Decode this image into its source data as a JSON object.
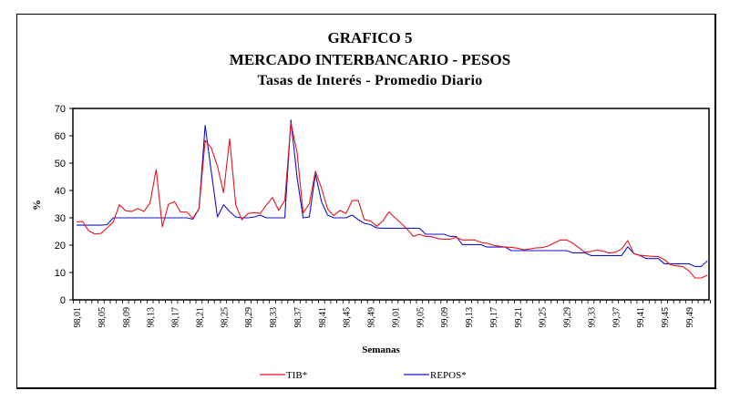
{
  "chart_data": {
    "type": "line",
    "title": "GRAFICO 5",
    "subtitle": "MERCADO INTERBANCARIO - PESOS",
    "subtitle2": "Tasas de Interés - Promedio Diario",
    "xlabel": "Semanas",
    "ylabel": "%",
    "ylim": [
      0,
      70
    ],
    "y_ticks": [
      0,
      10,
      20,
      30,
      40,
      50,
      60,
      70
    ],
    "x_tick_labels": [
      "98,01",
      "98,05",
      "98,09",
      "98,13",
      "98,17",
      "98,21",
      "98,25",
      "98,29",
      "98,33",
      "98,37",
      "98,41",
      "98,45",
      "98,49",
      "99,01",
      "99,05",
      "99,09",
      "99,13",
      "99,17",
      "99,21",
      "99,25",
      "99,29",
      "99,33",
      "99,37",
      "99,41",
      "99,45",
      "99,49"
    ],
    "grid": false,
    "legend_position": "bottom",
    "series": [
      {
        "name": "TIB*",
        "color": "#e8141e",
        "values": [
          28.5,
          28.7,
          25.2,
          24.1,
          24.3,
          26.3,
          28.5,
          34.8,
          32.6,
          32.3,
          33.4,
          32.3,
          35.4,
          47.7,
          26.7,
          34.9,
          35.9,
          32.1,
          32.1,
          29.8,
          33.4,
          58.3,
          55.6,
          48.9,
          39.2,
          58.9,
          34.7,
          29.3,
          31.6,
          31.9,
          31.6,
          34.7,
          37.4,
          32.7,
          36.3,
          64.7,
          54.1,
          31.8,
          35.1,
          47.1,
          40.8,
          33.2,
          30.8,
          32.7,
          31.6,
          36.3,
          36.3,
          29.3,
          28.9,
          26.9,
          28.8,
          32.2,
          30,
          28,
          25.8,
          23.2,
          24,
          23.2,
          23.1,
          22.4,
          22.2,
          22.2,
          22.8,
          21.9,
          21.9,
          21.9,
          21,
          20.7,
          20,
          19.6,
          19.3,
          19.2,
          18.9,
          18.3,
          18.6,
          19,
          19.1,
          19.7,
          20.8,
          21.9,
          21.9,
          20.8,
          19.1,
          17.4,
          17.7,
          18.2,
          17.8,
          17.1,
          17.4,
          18.6,
          21.7,
          16.9,
          16.3,
          16.1,
          15.9,
          15.8,
          14.7,
          12.8,
          12.4,
          12.2,
          10.6,
          8,
          8,
          9
        ]
      },
      {
        "name": "REPOS*",
        "color": "#1414c8",
        "values": [
          27.3,
          27.3,
          27.3,
          27.3,
          27.3,
          27.5,
          30,
          30,
          30,
          30,
          30,
          30,
          30,
          30,
          30,
          30,
          30,
          30,
          30,
          29.5,
          33.4,
          63.8,
          47,
          30.3,
          34.8,
          32.3,
          30.3,
          30,
          30,
          30.3,
          31,
          30,
          30,
          30,
          30,
          65.8,
          45,
          30,
          30.3,
          46,
          35.9,
          31,
          30,
          30,
          30,
          31,
          29.3,
          28,
          27.5,
          26.3,
          26.2,
          26.2,
          26.2,
          26.2,
          26.2,
          26.2,
          26.2,
          24,
          24,
          24,
          24,
          23.2,
          23.2,
          20.2,
          20.2,
          20.2,
          20.2,
          19.3,
          19.3,
          19.3,
          19.3,
          18,
          18,
          18,
          18,
          18,
          18,
          18,
          18,
          18,
          18,
          17.2,
          17.2,
          17.2,
          16.2,
          16.2,
          16.2,
          16.2,
          16.2,
          16.2,
          19.4,
          16.9,
          16.2,
          15.1,
          15.1,
          15.1,
          13.2,
          13.2,
          13.2,
          13.2,
          13.2,
          12.2,
          12.2,
          14.3
        ]
      }
    ]
  }
}
